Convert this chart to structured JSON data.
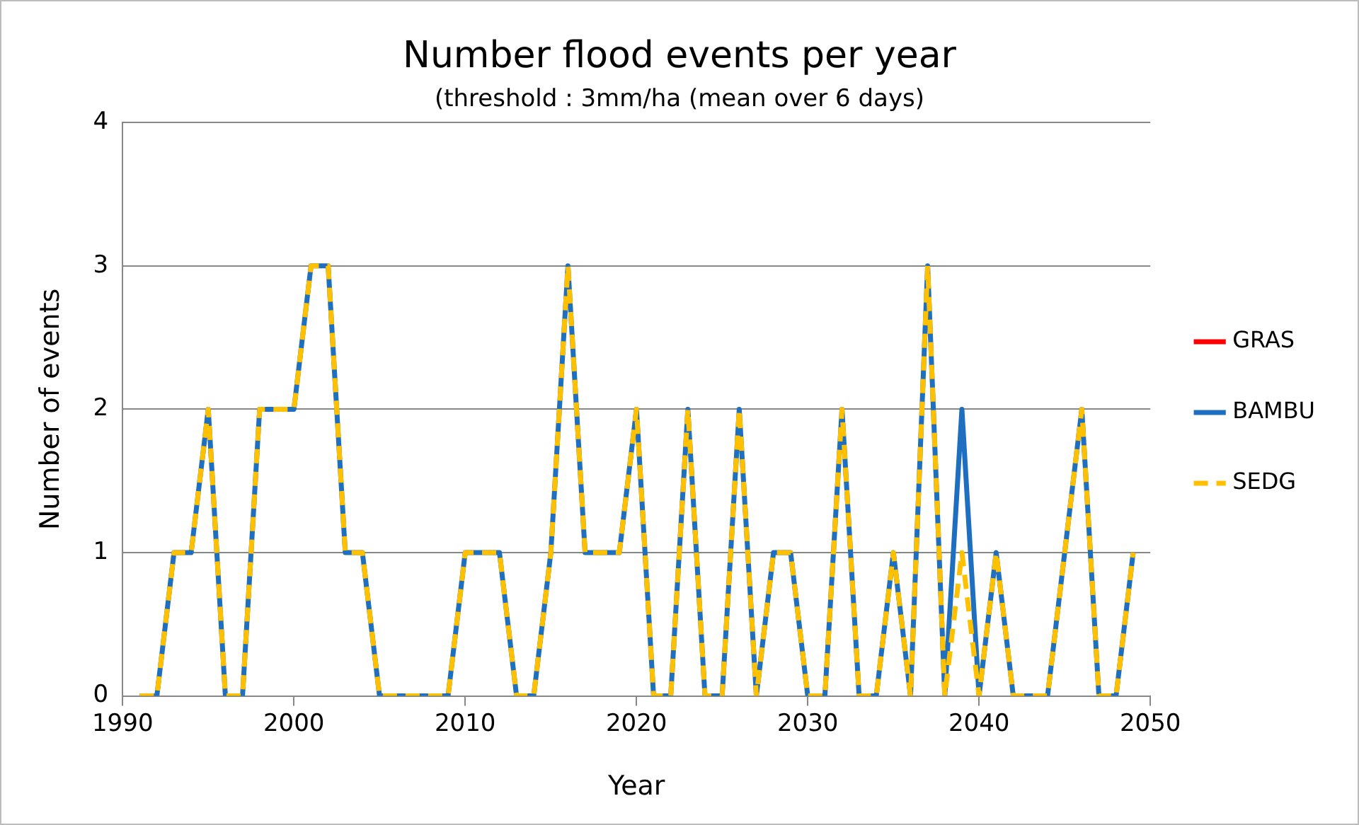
{
  "chart_data": {
    "type": "line",
    "title": "Number flood events per year",
    "subtitle": "(threshold : 3mm/ha (mean over 6 days)",
    "xlabel": "Year",
    "ylabel": "Number of events",
    "x": [
      1991,
      1992,
      1993,
      1994,
      1995,
      1996,
      1997,
      1998,
      1999,
      2000,
      2001,
      2002,
      2003,
      2004,
      2005,
      2006,
      2007,
      2008,
      2009,
      2010,
      2011,
      2012,
      2013,
      2014,
      2015,
      2016,
      2017,
      2018,
      2019,
      2020,
      2021,
      2022,
      2023,
      2024,
      2025,
      2026,
      2027,
      2028,
      2029,
      2030,
      2031,
      2032,
      2033,
      2034,
      2035,
      2036,
      2037,
      2038,
      2039,
      2040,
      2041,
      2042,
      2043,
      2044,
      2045,
      2046,
      2047,
      2048,
      2049
    ],
    "series": [
      {
        "name": "GRAS",
        "color": "#ff0000",
        "line_style": "solid",
        "values": [
          null,
          null,
          null,
          null,
          null,
          null,
          null,
          null,
          null,
          null,
          null,
          null,
          null,
          null,
          null,
          null,
          null,
          null,
          null,
          null,
          null,
          null,
          null,
          null,
          null,
          null,
          null,
          null,
          null,
          null,
          null,
          null,
          null,
          null,
          null,
          null,
          null,
          null,
          null,
          null,
          null,
          null,
          null,
          null,
          null,
          null,
          null,
          null,
          null,
          null,
          null,
          null,
          null,
          null,
          null,
          null,
          null,
          null,
          null
        ]
      },
      {
        "name": "BAMBU",
        "color": "#1f6fc0",
        "line_style": "solid",
        "values": [
          0,
          0,
          1,
          1,
          2,
          0,
          0,
          2,
          2,
          2,
          3,
          3,
          1,
          1,
          0,
          0,
          0,
          0,
          0,
          1,
          1,
          1,
          0,
          0,
          1,
          3,
          1,
          1,
          1,
          2,
          0,
          0,
          2,
          0,
          0,
          2,
          0,
          1,
          1,
          0,
          0,
          2,
          0,
          0,
          1,
          0,
          3,
          0,
          2,
          0,
          1,
          0,
          0,
          0,
          1,
          2,
          0,
          0,
          1
        ]
      },
      {
        "name": "SEDG",
        "color": "#ffc000",
        "line_style": "dashed",
        "values": [
          0,
          0,
          1,
          1,
          2,
          0,
          0,
          2,
          2,
          2,
          3,
          3,
          1,
          1,
          0,
          0,
          0,
          0,
          0,
          1,
          1,
          1,
          0,
          0,
          1,
          3,
          1,
          1,
          1,
          2,
          0,
          0,
          2,
          0,
          0,
          2,
          0,
          1,
          1,
          0,
          0,
          2,
          0,
          0,
          1,
          0,
          3,
          0,
          1,
          0,
          1,
          0,
          0,
          0,
          1,
          2,
          0,
          0,
          1
        ]
      }
    ],
    "xlim": [
      1990,
      2050
    ],
    "xticks": [
      1990,
      2000,
      2010,
      2020,
      2030,
      2040,
      2050
    ],
    "ylim": [
      0,
      4
    ],
    "yticks": [
      0,
      1,
      2,
      3,
      4
    ],
    "grid": "y",
    "legend": "right",
    "marker": "none"
  }
}
